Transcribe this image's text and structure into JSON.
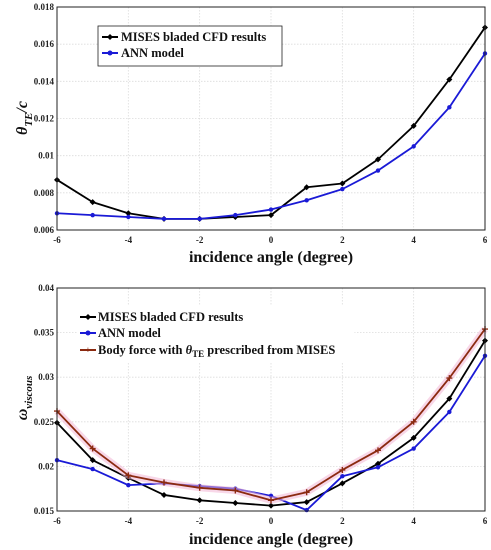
{
  "chart_data": [
    {
      "type": "line",
      "xlabel": "incidence angle (degree)",
      "ylabel_main": "θ",
      "ylabel_sub": "TE",
      "ylabel_tail": "/c",
      "xlim": [
        -6,
        6
      ],
      "ylim": [
        0.006,
        0.018
      ],
      "xticks": [
        "-6",
        "-4",
        "-2",
        "0",
        "2",
        "4",
        "6"
      ],
      "yticks": [
        "0.006",
        "0.008",
        "0.01",
        "0.012",
        "0.014",
        "0.016",
        "0.018"
      ],
      "grid": true,
      "legend_position": "top-left",
      "x": [
        -6,
        -5,
        -4,
        -3,
        -2,
        -1,
        0,
        1,
        2,
        3,
        4,
        5,
        6
      ],
      "series": [
        {
          "name": "MISES bladed CFD results",
          "color": "#000000",
          "values": [
            0.0087,
            0.0075,
            0.0069,
            0.0066,
            0.0066,
            0.0067,
            0.0068,
            0.0083,
            0.0085,
            0.0098,
            0.0116,
            0.0141,
            0.0169
          ]
        },
        {
          "name": "ANN model",
          "color": "#1a1ad6",
          "values": [
            0.0069,
            0.0068,
            0.0067,
            0.0066,
            0.0066,
            0.0068,
            0.0071,
            0.0076,
            0.0082,
            0.0092,
            0.0105,
            0.0126,
            0.0155
          ]
        }
      ]
    },
    {
      "type": "line",
      "xlabel": "incidence angle (degree)",
      "ylabel_main": "ω",
      "ylabel_sub": "viscous",
      "xlim": [
        -6,
        6
      ],
      "ylim": [
        0.015,
        0.04
      ],
      "xticks": [
        "-6",
        "-4",
        "-2",
        "0",
        "2",
        "4",
        "6"
      ],
      "yticks": [
        "0.015",
        "0.02",
        "0.025",
        "0.03",
        "0.035",
        "0.04"
      ],
      "grid": true,
      "legend_position": "top-left",
      "x": [
        -6,
        -5,
        -4,
        -3,
        -2,
        -1,
        0,
        1,
        2,
        3,
        4,
        5,
        6
      ],
      "series": [
        {
          "name": "MISES bladed CFD results",
          "color": "#000000",
          "values": [
            0.0249,
            0.0207,
            0.0187,
            0.0168,
            0.0162,
            0.0159,
            0.0156,
            0.016,
            0.0181,
            0.0203,
            0.0232,
            0.0276,
            0.0341
          ]
        },
        {
          "name": "ANN model",
          "color": "#1a1ad6",
          "values": [
            0.0207,
            0.0197,
            0.0179,
            0.0181,
            0.0178,
            0.0175,
            0.0167,
            0.0151,
            0.0189,
            0.0199,
            0.022,
            0.0261,
            0.0324
          ]
        },
        {
          "name": "Body force with θTE prescribed from MISES",
          "name_prefix": "Body force with ",
          "name_theta": "θ",
          "name_sub": "TE",
          "name_suffix": " prescribed from MISES",
          "color": "#8b2a10",
          "values": [
            0.0262,
            0.022,
            0.019,
            0.0182,
            0.0176,
            0.0173,
            0.0162,
            0.0171,
            0.0196,
            0.0218,
            0.025,
            0.0299,
            0.0354
          ]
        }
      ]
    }
  ]
}
